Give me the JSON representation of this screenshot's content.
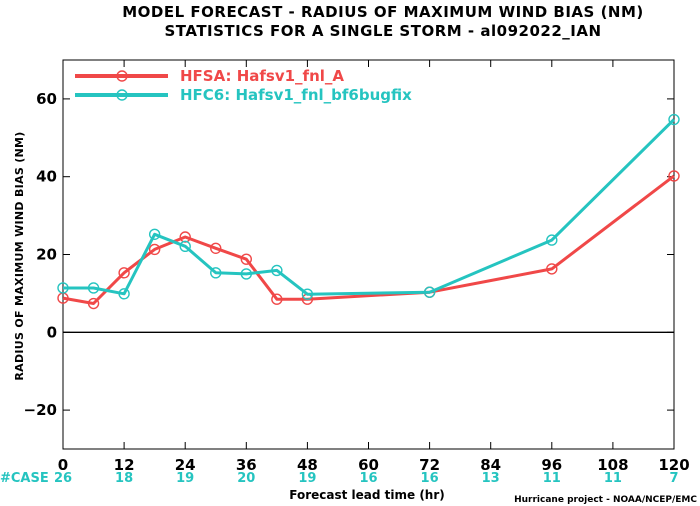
{
  "title_line1": "MODEL FORECAST - RADIUS OF MAXIMUM WIND BIAS (NM)",
  "title_line2": "STATISTICS FOR A SINGLE STORM - al092022_IAN",
  "ylabel": "RADIUS OF MAXIMUM WIND BIAS (NM)",
  "xlabel": "Forecast lead time (hr)",
  "credit": "Hurricane project - NOAA/NCEP/EMC",
  "case_label": "#CASE",
  "colors": {
    "hfsa": "#f04848",
    "hfc6": "#25c4c0",
    "zero": "#000000"
  },
  "chart_data": {
    "type": "line",
    "xlim": [
      0,
      120
    ],
    "ylim": [
      -30,
      70
    ],
    "xticks": [
      0,
      12,
      24,
      36,
      48,
      60,
      72,
      84,
      96,
      108,
      120
    ],
    "yticks": [
      -20,
      0,
      20,
      40,
      60
    ],
    "case_counts": [
      {
        "x": 0,
        "n": "26"
      },
      {
        "x": 12,
        "n": "18"
      },
      {
        "x": 24,
        "n": "19"
      },
      {
        "x": 36,
        "n": "20"
      },
      {
        "x": 48,
        "n": "19"
      },
      {
        "x": 60,
        "n": "16"
      },
      {
        "x": 72,
        "n": "16"
      },
      {
        "x": 84,
        "n": "13"
      },
      {
        "x": 96,
        "n": "11"
      },
      {
        "x": 108,
        "n": "11"
      },
      {
        "x": 120,
        "n": "7"
      }
    ],
    "series": [
      {
        "name": "HFSA: Hafsv1_fnl_A",
        "color": "#f04848",
        "x": [
          0,
          6,
          12,
          18,
          24,
          30,
          36,
          42,
          48,
          72,
          96,
          120
        ],
        "y": [
          8.8,
          7.4,
          15.3,
          21.3,
          24.5,
          21.6,
          18.8,
          8.5,
          8.5,
          10.3,
          16.3,
          40.2
        ]
      },
      {
        "name": "HFC6: Hafsv1_fnl_bf6bugfix",
        "color": "#25c4c0",
        "x": [
          0,
          6,
          12,
          18,
          24,
          30,
          36,
          42,
          48,
          72,
          96,
          120
        ],
        "y": [
          11.4,
          11.4,
          9.9,
          25.2,
          22.1,
          15.3,
          15.0,
          15.9,
          9.8,
          10.3,
          23.7,
          54.7
        ]
      }
    ]
  }
}
